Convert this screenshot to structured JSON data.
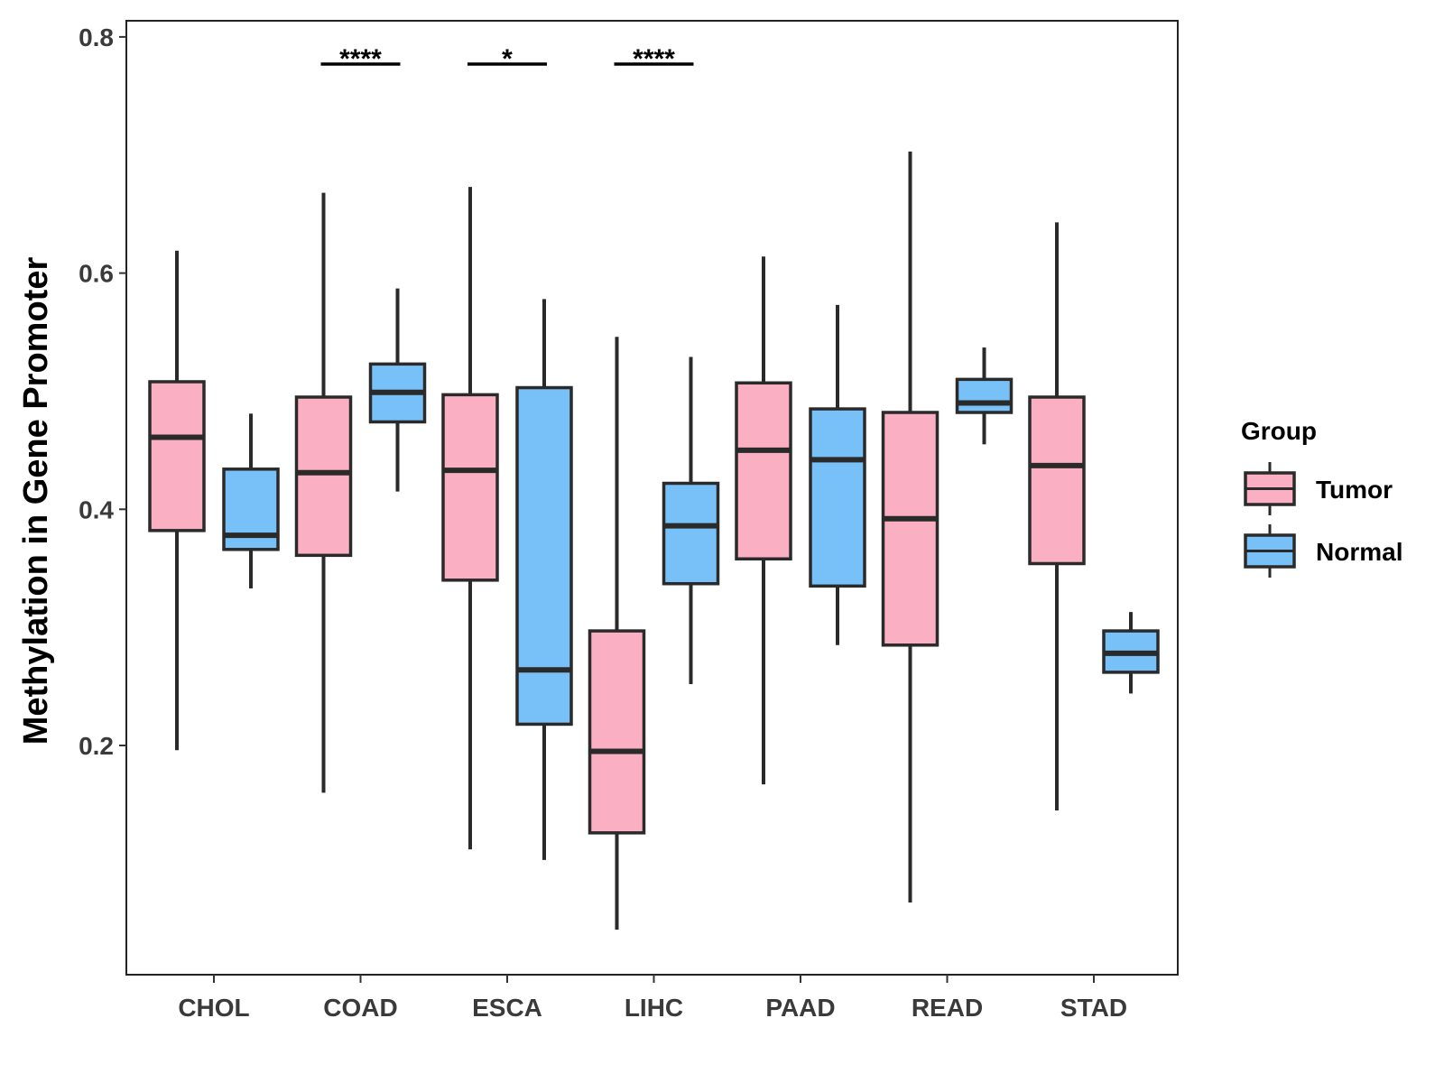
{
  "chart_data": {
    "type": "boxplot",
    "title": "",
    "xlabel": "",
    "ylabel": "Methylation in Gene Promoter",
    "ylim": [
      0.0,
      0.815
    ],
    "yticks": [
      0.2,
      0.4,
      0.6,
      0.8
    ],
    "ytick_labels": [
      "0.2",
      "0.4",
      "0.6",
      "0.8"
    ],
    "categories": [
      "CHOL",
      "COAD",
      "ESCA",
      "LIHC",
      "PAAD",
      "READ",
      "STAD"
    ],
    "legend": {
      "title": "Group",
      "placement": "right",
      "entries": [
        {
          "name": "Tumor",
          "color": "#FAAFC2"
        },
        {
          "name": "Normal",
          "color": "#78C1F8"
        }
      ]
    },
    "series": [
      {
        "name": "Tumor",
        "color": "#FAAFC2",
        "boxes": [
          {
            "category": "CHOL",
            "min": 0.196,
            "q1": 0.382,
            "median": 0.461,
            "q3": 0.508,
            "max": 0.619
          },
          {
            "category": "COAD",
            "min": 0.16,
            "q1": 0.361,
            "median": 0.431,
            "q3": 0.495,
            "max": 0.668
          },
          {
            "category": "ESCA",
            "min": 0.112,
            "q1": 0.34,
            "median": 0.433,
            "q3": 0.497,
            "max": 0.673
          },
          {
            "category": "LIHC",
            "min": 0.044,
            "q1": 0.126,
            "median": 0.195,
            "q3": 0.297,
            "max": 0.546
          },
          {
            "category": "PAAD",
            "min": 0.167,
            "q1": 0.358,
            "median": 0.45,
            "q3": 0.507,
            "max": 0.614
          },
          {
            "category": "READ",
            "min": 0.067,
            "q1": 0.285,
            "median": 0.392,
            "q3": 0.482,
            "max": 0.703
          },
          {
            "category": "STAD",
            "min": 0.145,
            "q1": 0.354,
            "median": 0.437,
            "q3": 0.495,
            "max": 0.643
          }
        ]
      },
      {
        "name": "Normal",
        "color": "#78C1F8",
        "boxes": [
          {
            "category": "CHOL",
            "min": 0.333,
            "q1": 0.366,
            "median": 0.378,
            "q3": 0.434,
            "max": 0.481
          },
          {
            "category": "COAD",
            "min": 0.415,
            "q1": 0.474,
            "median": 0.499,
            "q3": 0.523,
            "max": 0.587
          },
          {
            "category": "ESCA",
            "min": 0.103,
            "q1": 0.218,
            "median": 0.264,
            "q3": 0.503,
            "max": 0.578
          },
          {
            "category": "LIHC",
            "min": 0.252,
            "q1": 0.337,
            "median": 0.386,
            "q3": 0.422,
            "max": 0.529
          },
          {
            "category": "PAAD",
            "min": 0.285,
            "q1": 0.335,
            "median": 0.442,
            "q3": 0.485,
            "max": 0.573
          },
          {
            "category": "READ",
            "min": 0.455,
            "q1": 0.482,
            "median": 0.49,
            "q3": 0.51,
            "max": 0.537
          },
          {
            "category": "STAD",
            "min": 0.244,
            "q1": 0.262,
            "median": 0.278,
            "q3": 0.297,
            "max": 0.313
          }
        ]
      }
    ],
    "annotations": [
      {
        "category": "COAD",
        "label": "****",
        "y": 0.777
      },
      {
        "category": "ESCA",
        "label": "*",
        "y": 0.777
      },
      {
        "category": "LIHC",
        "label": "****",
        "y": 0.777
      }
    ],
    "grid": false
  }
}
